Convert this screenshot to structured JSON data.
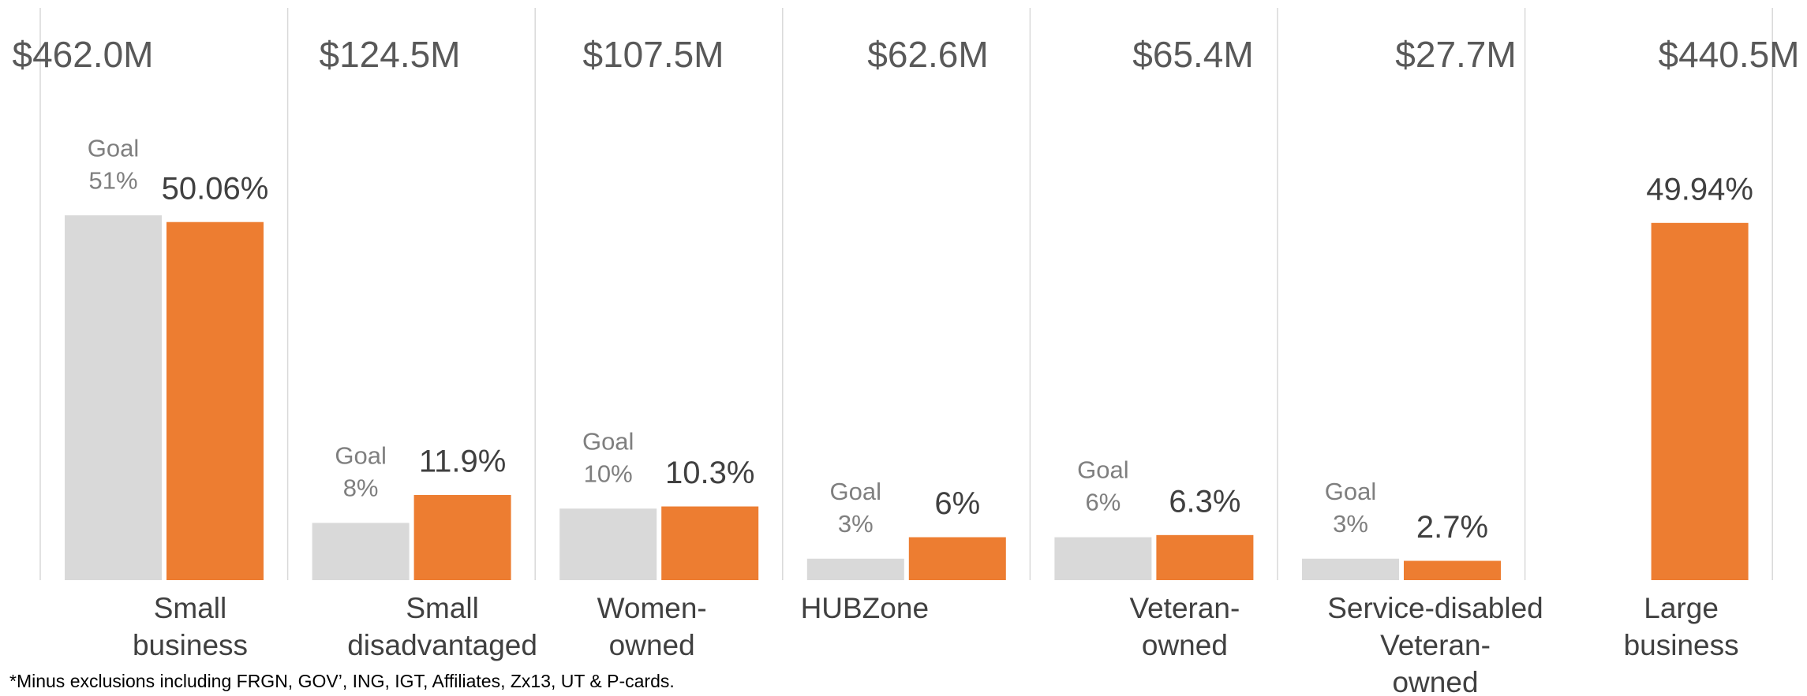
{
  "chart_data": {
    "type": "bar",
    "amounts": [
      "$462.0M",
      "$124.5M",
      "$107.5M",
      "$62.6M",
      "$65.4M",
      "$27.7M",
      "$440.5M"
    ],
    "categories": [
      [
        "Small",
        "business"
      ],
      [
        "Small",
        "disadvantaged"
      ],
      [
        "Women-",
        "owned"
      ],
      [
        "HUBZone"
      ],
      [
        "Veteran-",
        "owned"
      ],
      [
        "Service-disabled",
        "Veteran-",
        "owned"
      ],
      [
        "Large",
        "business"
      ]
    ],
    "series": [
      {
        "name": "Goal",
        "color": "#d9d9d9",
        "values": [
          51,
          8,
          10,
          3,
          6,
          3,
          null
        ],
        "value_labels": [
          "51%",
          "8%",
          "10%",
          "3%",
          "6%",
          "3%",
          null
        ]
      },
      {
        "color": "#ed7d31",
        "values": [
          50.06,
          11.9,
          10.3,
          6,
          6.3,
          2.7,
          49.94
        ],
        "value_labels": [
          "50.06%",
          "11.9%",
          "10.3%",
          "6%",
          "6.3%",
          "2.7%",
          "49.94%"
        ]
      }
    ],
    "ylim": [
      0,
      80
    ],
    "footnote": "*Minus exclusions including FRGN, GOV’, ING, IGT, Affiliates, Zx13, UT & P-cards."
  }
}
